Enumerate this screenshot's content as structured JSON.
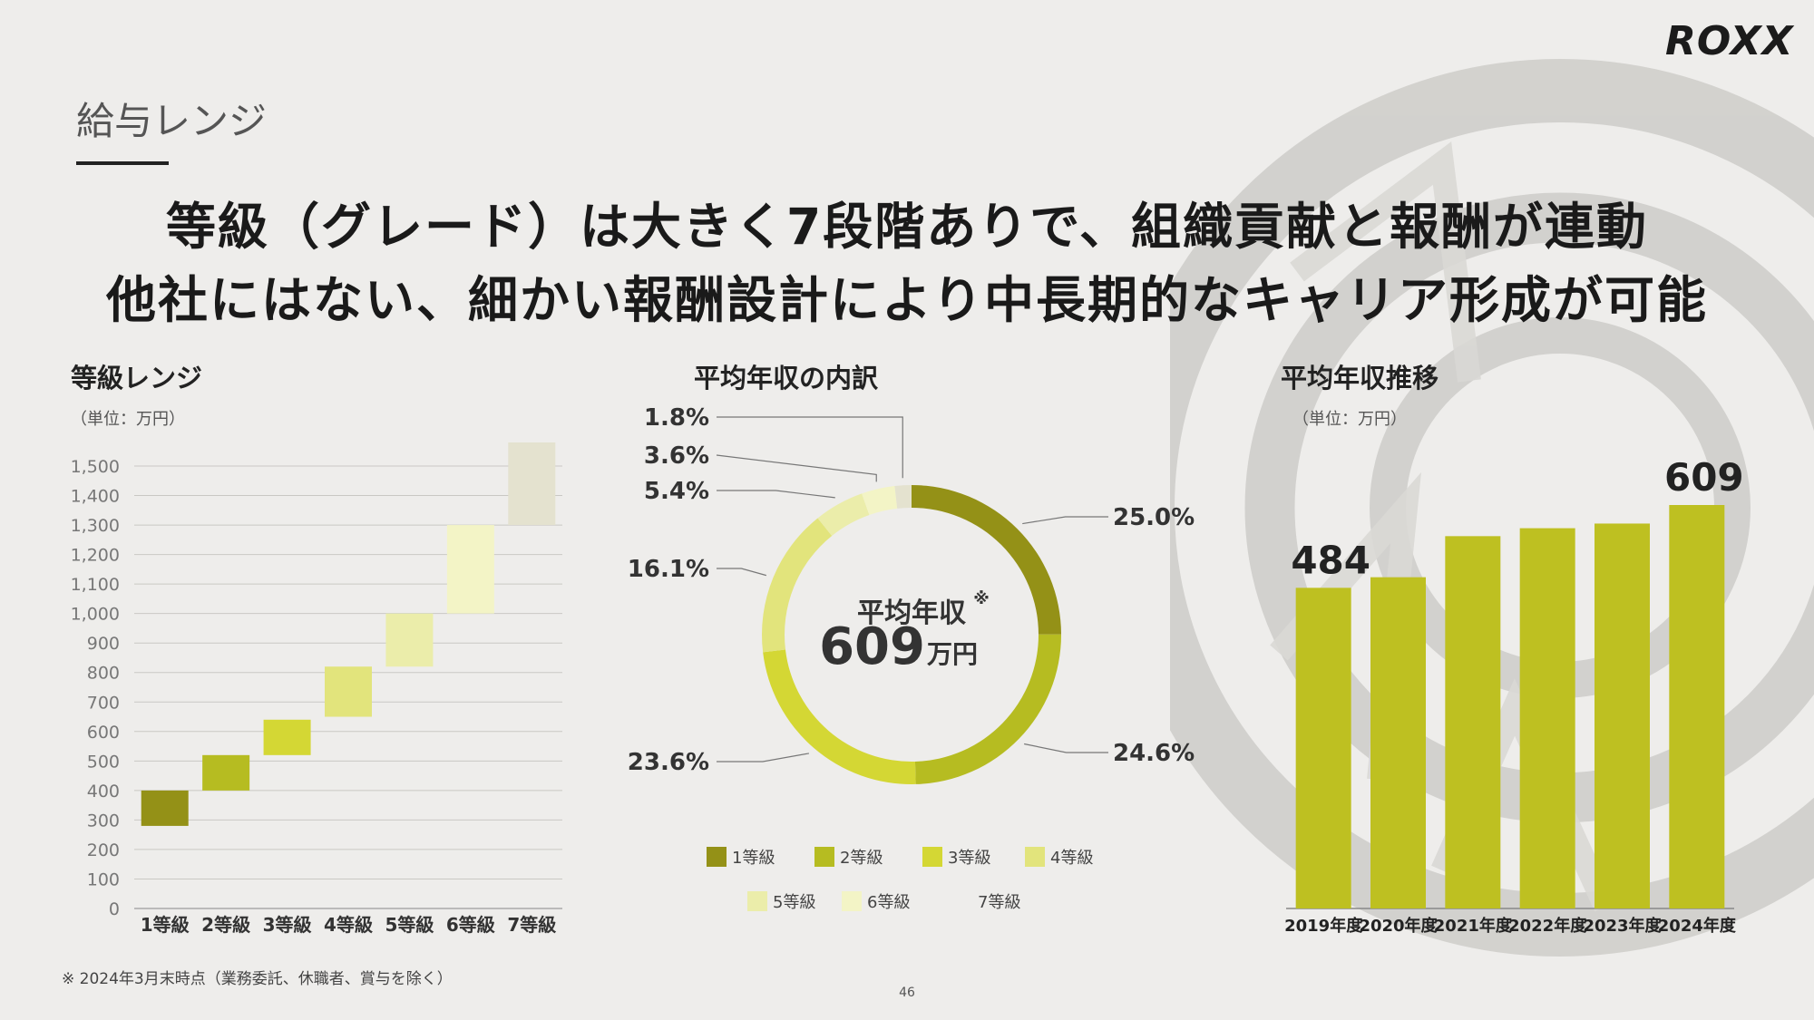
{
  "logo": "ROXX",
  "section_title": "給与レンジ",
  "headline": {
    "line1": "等級（グレード）は大きく7段階ありで、組織貢献と報酬が連動",
    "line2": "他社にはない、細かい報酬設計により中長期的なキャリア形成が可能"
  },
  "footnote": "※ 2024年3月末時点（業務委託、休職者、賞与を除く）",
  "page_number": "46",
  "colors": {
    "grade1": "#949117",
    "grade2": "#b6bc21",
    "grade3": "#d4d734",
    "grade4": "#e2e47c",
    "grade5": "#ebedaa",
    "grade6": "#f3f4c6",
    "grade7": "#e4e2cf",
    "bar": "#bec021"
  },
  "chart_data": [
    {
      "type": "bar",
      "subtype": "floating-range",
      "title": "等級レンジ",
      "unit": "（単位：万円）",
      "categories": [
        "1等級",
        "2等級",
        "3等級",
        "4等級",
        "5等級",
        "6等級",
        "7等級"
      ],
      "ranges": [
        [
          280,
          400
        ],
        [
          400,
          520
        ],
        [
          520,
          640
        ],
        [
          650,
          820
        ],
        [
          820,
          1000
        ],
        [
          1000,
          1300
        ],
        [
          1300,
          1580
        ]
      ],
      "ylim": [
        0,
        1500
      ],
      "yticks": [
        0,
        100,
        200,
        300,
        400,
        500,
        600,
        700,
        800,
        900,
        1000,
        1100,
        1200,
        1300,
        1400,
        1500
      ],
      "ytick_labels": [
        "0",
        "100",
        "200",
        "300",
        "400",
        "500",
        "600",
        "700",
        "800",
        "900",
        "1,000",
        "1,100",
        "1,200",
        "1,300",
        "1,400",
        "1,500"
      ],
      "grid": true
    },
    {
      "type": "pie",
      "subtype": "donut",
      "title": "平均年収の内訳",
      "center_label": "平均年収",
      "center_mark": "※",
      "center_value": "609",
      "center_unit": "万円",
      "slices": [
        {
          "name": "1等級",
          "value": 25.0,
          "label": "25.0%"
        },
        {
          "name": "2等級",
          "value": 24.6,
          "label": "24.6%"
        },
        {
          "name": "3等級",
          "value": 23.6,
          "label": "23.6%"
        },
        {
          "name": "4等級",
          "value": 16.1,
          "label": "16.1%"
        },
        {
          "name": "5等級",
          "value": 5.4,
          "label": "5.4%"
        },
        {
          "name": "6等級",
          "value": 3.6,
          "label": "3.6%"
        },
        {
          "name": "7等級",
          "value": 1.8,
          "label": "1.8%"
        }
      ],
      "legend_placement": "bottom"
    },
    {
      "type": "bar",
      "title": "平均年収推移",
      "unit": "（単位：万円）",
      "categories": [
        "2019年度",
        "2020年度",
        "2021年度",
        "2022年度",
        "2023年度",
        "2024年度"
      ],
      "values": [
        484,
        500,
        562,
        574,
        581,
        609
      ],
      "data_labels": {
        "2019年度": "484",
        "2024年度": "609"
      }
    }
  ]
}
